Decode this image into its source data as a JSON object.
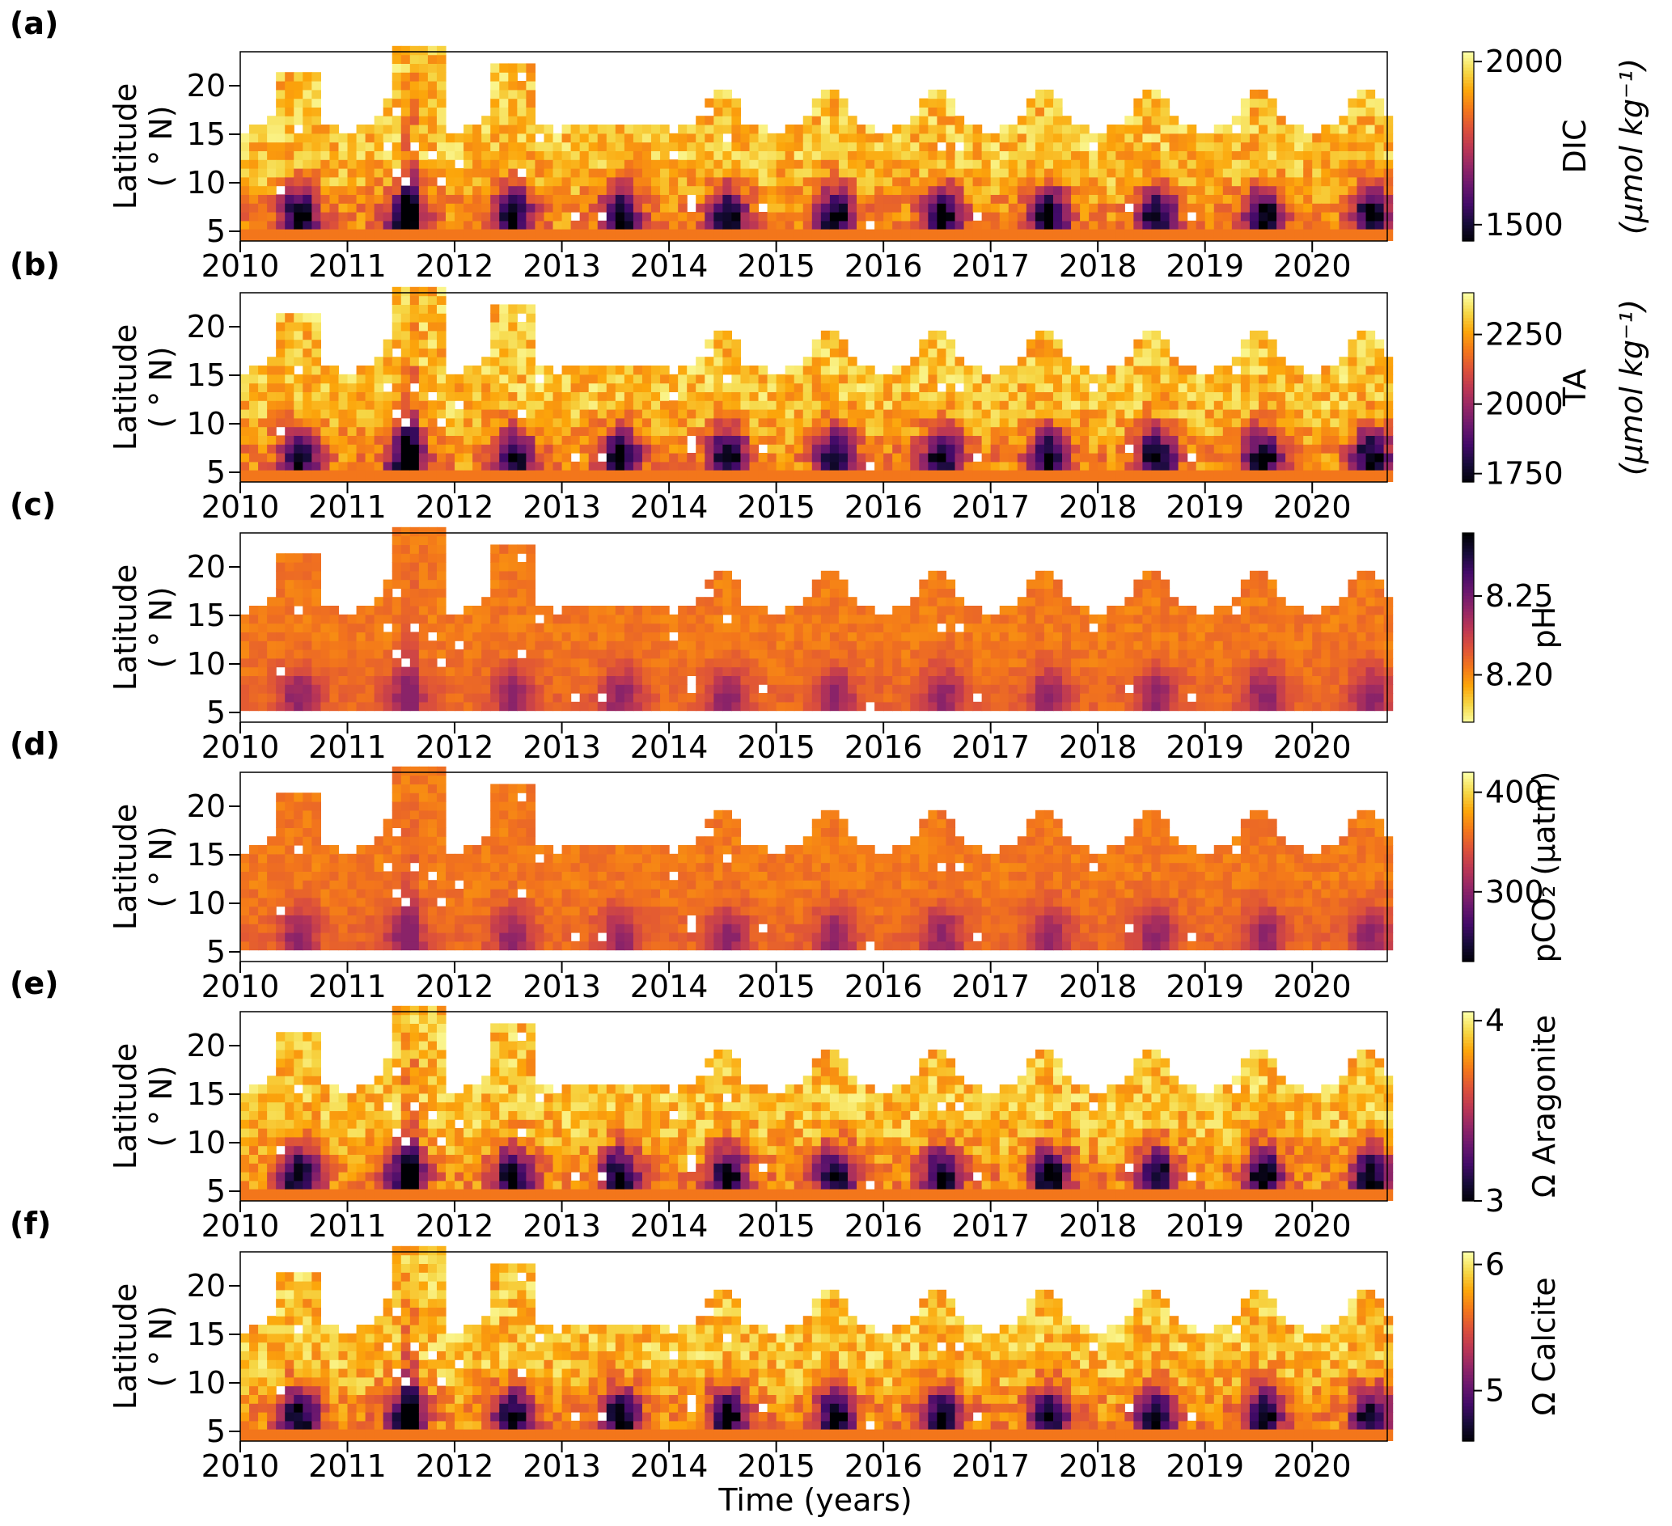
{
  "figure": {
    "xlabel": "Time (years)"
  },
  "chart_data": [
    {
      "type": "heatmap",
      "panel": "(a)",
      "ylabel": [
        "Latitude",
        "( ° N)"
      ],
      "x_ticks": [
        "2010",
        "2011",
        "2012",
        "2013",
        "2014",
        "2015",
        "2016",
        "2017",
        "2018",
        "2019",
        "2020"
      ],
      "xlim": [
        2010,
        2020.7
      ],
      "y_ticks": [
        "5",
        "10",
        "15",
        "20"
      ],
      "ylim": [
        4,
        23.5
      ],
      "colormap": "inferno_r",
      "colorbar": {
        "label_main": "DIC",
        "label_unit": "(μmol kg⁻¹)",
        "vmin": 1450,
        "vmax": 2030,
        "ticks": [
          1500,
          2000
        ],
        "tick_labels": [
          "1500",
          "2000"
        ],
        "reversed": false
      },
      "pattern": {
        "mode": "normal"
      }
    },
    {
      "type": "heatmap",
      "panel": "(b)",
      "ylabel": [
        "Latitude",
        "( ° N)"
      ],
      "x_ticks": [
        "2010",
        "2011",
        "2012",
        "2013",
        "2014",
        "2015",
        "2016",
        "2017",
        "2018",
        "2019",
        "2020"
      ],
      "xlim": [
        2010,
        2020.7
      ],
      "y_ticks": [
        "5",
        "10",
        "15",
        "20"
      ],
      "ylim": [
        4,
        23.5
      ],
      "colormap": "inferno_r",
      "colorbar": {
        "label_main": "TA",
        "label_unit": "(μmol kg⁻¹)",
        "vmin": 1720,
        "vmax": 2400,
        "ticks": [
          1750,
          2000,
          2250
        ],
        "tick_labels": [
          "1750",
          "2000",
          "2250"
        ],
        "reversed": false
      },
      "pattern": {
        "mode": "normal"
      }
    },
    {
      "type": "heatmap",
      "panel": "(c)",
      "ylabel": [
        "Latitude",
        "( ° N)"
      ],
      "x_ticks": [
        "2010",
        "2011",
        "2012",
        "2013",
        "2014",
        "2015",
        "2016",
        "2017",
        "2018",
        "2019",
        "2020"
      ],
      "xlim": [
        2010,
        2020.7
      ],
      "y_ticks": [
        "5",
        "10",
        "15",
        "20"
      ],
      "ylim": [
        4,
        23.5
      ],
      "colormap": "inferno",
      "colorbar": {
        "label_main": "pH",
        "label_unit": "",
        "vmin": 8.17,
        "vmax": 8.29,
        "ticks": [
          8.2,
          8.25
        ],
        "tick_labels": [
          "8.20",
          "8.25"
        ],
        "reversed": true
      },
      "pattern": {
        "mode": "inverse"
      }
    },
    {
      "type": "heatmap",
      "panel": "(d)",
      "ylabel": [
        "Latitude",
        "( ° N)"
      ],
      "x_ticks": [
        "2010",
        "2011",
        "2012",
        "2013",
        "2014",
        "2015",
        "2016",
        "2017",
        "2018",
        "2019",
        "2020"
      ],
      "xlim": [
        2010,
        2020.7
      ],
      "y_ticks": [
        "5",
        "10",
        "15",
        "20"
      ],
      "ylim": [
        4,
        23.5
      ],
      "colormap": "inferno_r",
      "colorbar": {
        "label_main": "pCO₂ (μatm)",
        "label_unit": "",
        "vmin": 230,
        "vmax": 420,
        "ticks": [
          300,
          400
        ],
        "tick_labels": [
          "300",
          "400"
        ],
        "reversed": false
      },
      "pattern": {
        "mode": "inverse"
      }
    },
    {
      "type": "heatmap",
      "panel": "(e)",
      "ylabel": [
        "Latitude",
        "( ° N)"
      ],
      "x_ticks": [
        "2010",
        "2011",
        "2012",
        "2013",
        "2014",
        "2015",
        "2016",
        "2017",
        "2018",
        "2019",
        "2020"
      ],
      "xlim": [
        2010,
        2020.7
      ],
      "y_ticks": [
        "5",
        "10",
        "15",
        "20"
      ],
      "ylim": [
        4,
        23.5
      ],
      "colormap": "inferno_r",
      "colorbar": {
        "label_main": "Ω Aragonite",
        "label_unit": "",
        "vmin": 3.0,
        "vmax": 4.05,
        "ticks": [
          3,
          4
        ],
        "tick_labels": [
          "3",
          "4"
        ],
        "reversed": false
      },
      "pattern": {
        "mode": "normal"
      }
    },
    {
      "type": "heatmap",
      "panel": "(f)",
      "ylabel": [
        "Latitude",
        "( ° N)"
      ],
      "x_ticks": [
        "2010",
        "2011",
        "2012",
        "2013",
        "2014",
        "2015",
        "2016",
        "2017",
        "2018",
        "2019",
        "2020"
      ],
      "xlim": [
        2010,
        2020.7
      ],
      "y_ticks": [
        "5",
        "10",
        "15",
        "20"
      ],
      "ylim": [
        4,
        23.5
      ],
      "colormap": "inferno_r",
      "colorbar": {
        "label_main": "Ω Calcite",
        "label_unit": "",
        "vmin": 4.6,
        "vmax": 6.1,
        "ticks": [
          5,
          6
        ],
        "tick_labels": [
          "5",
          "6"
        ],
        "reversed": false
      },
      "pattern": {
        "mode": "normal"
      }
    }
  ]
}
